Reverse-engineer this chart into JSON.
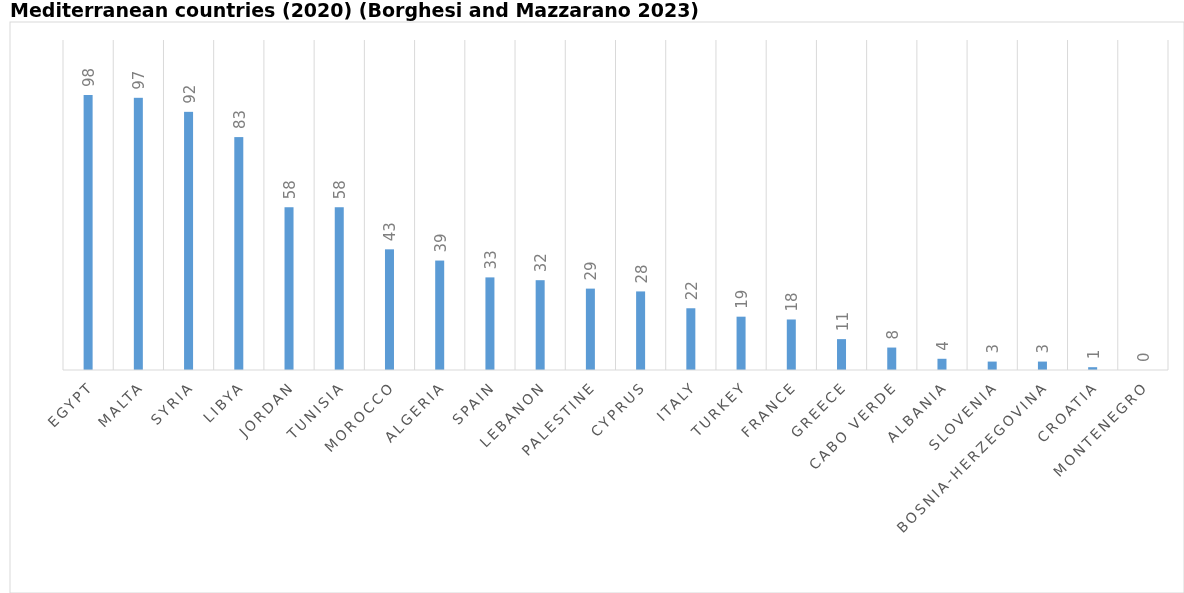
{
  "chart_data": {
    "type": "bar",
    "title": "Mediterranean countries (2020) (Borghesi and Mazzarano 2023)",
    "categories": [
      "EGYPT",
      "MALTA",
      "SYRIA",
      "LIBYA",
      "JORDAN",
      "TUNISIA",
      "MOROCCO",
      "ALGERIA",
      "SPAIN",
      "LEBANON",
      "PALESTINE",
      "CYPRUS",
      "ITALY",
      "TURKEY",
      "FRANCE",
      "GREECE",
      "CABO VERDE",
      "ALBANIA",
      "SLOVENIA",
      "BOSNIA-HERZEGOVINA",
      "CROATIA",
      "MONTENEGRO"
    ],
    "values": [
      98,
      97,
      92,
      83,
      58,
      58,
      43,
      39,
      33,
      32,
      29,
      28,
      22,
      19,
      18,
      11,
      8,
      4,
      3,
      3,
      1,
      0
    ],
    "color": "#5b9bd5",
    "data_labels": true,
    "grid": "x"
  }
}
